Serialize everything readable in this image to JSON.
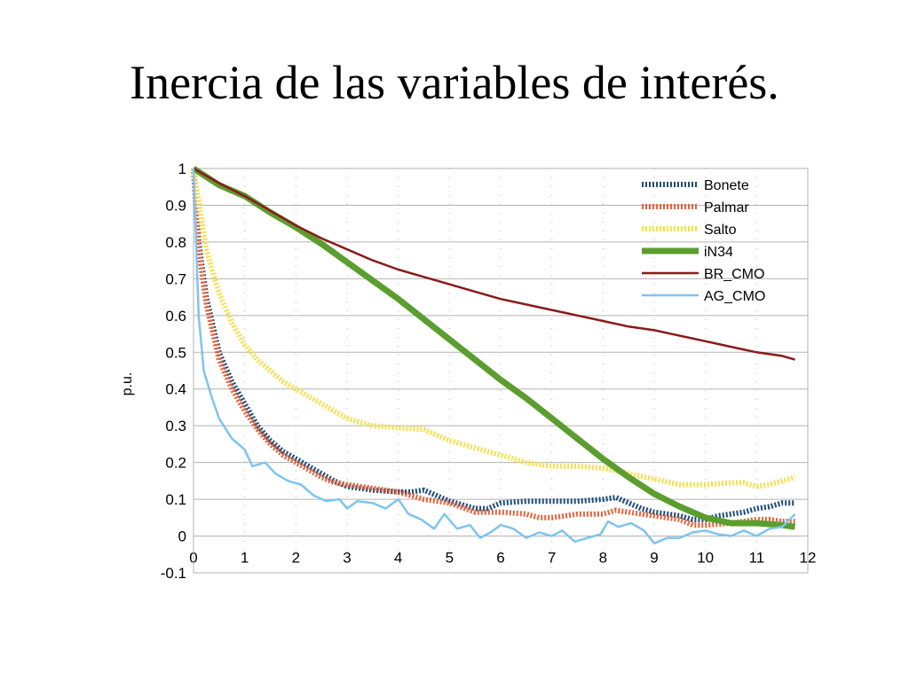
{
  "slide": {
    "title": "Inercia de las variables de interés."
  },
  "chart_data": {
    "type": "line",
    "title": "",
    "xlabel": "",
    "ylabel": "p.u.",
    "xlim": [
      0,
      12
    ],
    "ylim": [
      -0.1,
      1
    ],
    "xticks": [
      0,
      1,
      2,
      3,
      4,
      5,
      6,
      7,
      8,
      9,
      10,
      11,
      12
    ],
    "yticks": [
      -0.1,
      0,
      0.1,
      0.2,
      0.3,
      0.4,
      0.5,
      0.6,
      0.7,
      0.8,
      0.9,
      1
    ],
    "xtick_labels": [
      "0",
      "1",
      "2",
      "3",
      "4",
      "5",
      "6",
      "7",
      "8",
      "9",
      "10",
      "11",
      "12"
    ],
    "ytick_labels": [
      "-0.1",
      "0",
      "0.1",
      "0.2",
      "0.3",
      "0.4",
      "0.5",
      "0.6",
      "0.7",
      "0.8",
      "0.9",
      "1"
    ],
    "grid": "vertical dashed, horizontal solid",
    "legend_position": "top-right",
    "series": [
      {
        "name": "Bonete",
        "color": "#1f4e79",
        "style": "dotted-thick",
        "points": [
          [
            0,
            1
          ],
          [
            0.1,
            0.8
          ],
          [
            0.25,
            0.65
          ],
          [
            0.5,
            0.5
          ],
          [
            0.75,
            0.42
          ],
          [
            1,
            0.36
          ],
          [
            1.25,
            0.3
          ],
          [
            1.5,
            0.26
          ],
          [
            1.75,
            0.23
          ],
          [
            2,
            0.21
          ],
          [
            2.25,
            0.19
          ],
          [
            2.5,
            0.17
          ],
          [
            2.75,
            0.15
          ],
          [
            3,
            0.135
          ],
          [
            3.5,
            0.125
          ],
          [
            4,
            0.12
          ],
          [
            4.25,
            0.12
          ],
          [
            4.5,
            0.125
          ],
          [
            4.75,
            0.11
          ],
          [
            5,
            0.095
          ],
          [
            5.25,
            0.085
          ],
          [
            5.5,
            0.075
          ],
          [
            5.75,
            0.075
          ],
          [
            6,
            0.09
          ],
          [
            6.5,
            0.095
          ],
          [
            7,
            0.095
          ],
          [
            7.5,
            0.095
          ],
          [
            8,
            0.1
          ],
          [
            8.25,
            0.105
          ],
          [
            8.5,
            0.09
          ],
          [
            8.75,
            0.075
          ],
          [
            9,
            0.065
          ],
          [
            9.5,
            0.055
          ],
          [
            9.75,
            0.045
          ],
          [
            10,
            0.045
          ],
          [
            10.25,
            0.055
          ],
          [
            10.5,
            0.06
          ],
          [
            10.75,
            0.065
          ],
          [
            11,
            0.075
          ],
          [
            11.25,
            0.08
          ],
          [
            11.5,
            0.09
          ],
          [
            11.75,
            0.09
          ]
        ]
      },
      {
        "name": "Palmar",
        "color": "#e8623a",
        "style": "dotted-thick",
        "points": [
          [
            0,
            1
          ],
          [
            0.1,
            0.78
          ],
          [
            0.25,
            0.63
          ],
          [
            0.5,
            0.48
          ],
          [
            0.75,
            0.4
          ],
          [
            1,
            0.34
          ],
          [
            1.25,
            0.29
          ],
          [
            1.5,
            0.25
          ],
          [
            1.75,
            0.22
          ],
          [
            2,
            0.2
          ],
          [
            2.25,
            0.18
          ],
          [
            2.5,
            0.16
          ],
          [
            2.75,
            0.145
          ],
          [
            3,
            0.14
          ],
          [
            3.25,
            0.135
          ],
          [
            3.5,
            0.13
          ],
          [
            4,
            0.12
          ],
          [
            4.25,
            0.11
          ],
          [
            4.5,
            0.1
          ],
          [
            5,
            0.09
          ],
          [
            5.5,
            0.065
          ],
          [
            6,
            0.065
          ],
          [
            6.5,
            0.06
          ],
          [
            6.75,
            0.05
          ],
          [
            7,
            0.05
          ],
          [
            7.5,
            0.06
          ],
          [
            8,
            0.06
          ],
          [
            8.25,
            0.07
          ],
          [
            8.5,
            0.065
          ],
          [
            8.75,
            0.06
          ],
          [
            9,
            0.055
          ],
          [
            9.5,
            0.045
          ],
          [
            9.75,
            0.03
          ],
          [
            10,
            0.03
          ],
          [
            10.5,
            0.035
          ],
          [
            11,
            0.045
          ],
          [
            11.25,
            0.045
          ],
          [
            11.5,
            0.04
          ],
          [
            11.75,
            0.04
          ]
        ]
      },
      {
        "name": "Salto",
        "color": "#f5e04e",
        "style": "dotted-thick",
        "points": [
          [
            0,
            1
          ],
          [
            0.25,
            0.78
          ],
          [
            0.5,
            0.66
          ],
          [
            0.75,
            0.58
          ],
          [
            1,
            0.52
          ],
          [
            1.25,
            0.48
          ],
          [
            1.5,
            0.45
          ],
          [
            1.75,
            0.42
          ],
          [
            2,
            0.4
          ],
          [
            2.5,
            0.36
          ],
          [
            3,
            0.32
          ],
          [
            3.5,
            0.3
          ],
          [
            4,
            0.295
          ],
          [
            4.5,
            0.29
          ],
          [
            5,
            0.26
          ],
          [
            5.5,
            0.24
          ],
          [
            6,
            0.22
          ],
          [
            6.5,
            0.2
          ],
          [
            7,
            0.19
          ],
          [
            7.5,
            0.19
          ],
          [
            8,
            0.185
          ],
          [
            8.5,
            0.17
          ],
          [
            9,
            0.155
          ],
          [
            9.5,
            0.14
          ],
          [
            10,
            0.14
          ],
          [
            10.5,
            0.145
          ],
          [
            10.75,
            0.145
          ],
          [
            11,
            0.135
          ],
          [
            11.25,
            0.14
          ],
          [
            11.5,
            0.15
          ],
          [
            11.75,
            0.16
          ]
        ]
      },
      {
        "name": "iN34",
        "color": "#5b9e2f",
        "style": "solid-thick",
        "points": [
          [
            0,
            1
          ],
          [
            0.5,
            0.955
          ],
          [
            1,
            0.925
          ],
          [
            1.5,
            0.88
          ],
          [
            2,
            0.84
          ],
          [
            2.5,
            0.795
          ],
          [
            3,
            0.745
          ],
          [
            3.5,
            0.695
          ],
          [
            4,
            0.645
          ],
          [
            4.5,
            0.59
          ],
          [
            5,
            0.535
          ],
          [
            5.5,
            0.48
          ],
          [
            6,
            0.425
          ],
          [
            6.5,
            0.375
          ],
          [
            7,
            0.32
          ],
          [
            7.5,
            0.265
          ],
          [
            8,
            0.21
          ],
          [
            8.5,
            0.16
          ],
          [
            9,
            0.115
          ],
          [
            9.5,
            0.08
          ],
          [
            10,
            0.05
          ],
          [
            10.5,
            0.035
          ],
          [
            11,
            0.035
          ],
          [
            11.5,
            0.03
          ],
          [
            11.75,
            0.025
          ]
        ]
      },
      {
        "name": "BR_CMO",
        "color": "#8b1a1a",
        "style": "solid",
        "points": [
          [
            0,
            1
          ],
          [
            0.5,
            0.96
          ],
          [
            1,
            0.925
          ],
          [
            1.5,
            0.885
          ],
          [
            2,
            0.845
          ],
          [
            2.5,
            0.81
          ],
          [
            3,
            0.78
          ],
          [
            3.5,
            0.75
          ],
          [
            4,
            0.725
          ],
          [
            4.5,
            0.705
          ],
          [
            5,
            0.685
          ],
          [
            5.5,
            0.665
          ],
          [
            6,
            0.645
          ],
          [
            6.5,
            0.63
          ],
          [
            7,
            0.615
          ],
          [
            7.5,
            0.6
          ],
          [
            8,
            0.585
          ],
          [
            8.5,
            0.57
          ],
          [
            9,
            0.56
          ],
          [
            9.5,
            0.545
          ],
          [
            10,
            0.53
          ],
          [
            10.5,
            0.515
          ],
          [
            11,
            0.5
          ],
          [
            11.5,
            0.49
          ],
          [
            11.75,
            0.48
          ]
        ]
      },
      {
        "name": "AG_CMO",
        "color": "#7fc4f0",
        "style": "solid",
        "points": [
          [
            0,
            1
          ],
          [
            0.1,
            0.6
          ],
          [
            0.2,
            0.45
          ],
          [
            0.35,
            0.38
          ],
          [
            0.5,
            0.32
          ],
          [
            0.75,
            0.265
          ],
          [
            1,
            0.235
          ],
          [
            1.15,
            0.19
          ],
          [
            1.4,
            0.2
          ],
          [
            1.6,
            0.17
          ],
          [
            1.85,
            0.15
          ],
          [
            2.1,
            0.14
          ],
          [
            2.35,
            0.11
          ],
          [
            2.6,
            0.095
          ],
          [
            2.85,
            0.1
          ],
          [
            3,
            0.075
          ],
          [
            3.2,
            0.095
          ],
          [
            3.5,
            0.09
          ],
          [
            3.75,
            0.075
          ],
          [
            4,
            0.1
          ],
          [
            4.2,
            0.06
          ],
          [
            4.45,
            0.045
          ],
          [
            4.7,
            0.02
          ],
          [
            4.9,
            0.06
          ],
          [
            5.15,
            0.02
          ],
          [
            5.4,
            0.03
          ],
          [
            5.6,
            -0.005
          ],
          [
            5.8,
            0.01
          ],
          [
            6,
            0.03
          ],
          [
            6.25,
            0.02
          ],
          [
            6.5,
            -0.005
          ],
          [
            6.75,
            0.01
          ],
          [
            7,
            0
          ],
          [
            7.2,
            0.015
          ],
          [
            7.45,
            -0.015
          ],
          [
            7.7,
            -0.005
          ],
          [
            7.95,
            0.005
          ],
          [
            8.1,
            0.04
          ],
          [
            8.3,
            0.025
          ],
          [
            8.55,
            0.035
          ],
          [
            8.8,
            0.015
          ],
          [
            9,
            -0.02
          ],
          [
            9.25,
            -0.005
          ],
          [
            9.5,
            -0.005
          ],
          [
            9.75,
            0.01
          ],
          [
            10,
            0.015
          ],
          [
            10.25,
            0.005
          ],
          [
            10.5,
            0
          ],
          [
            10.75,
            0.015
          ],
          [
            11,
            0
          ],
          [
            11.25,
            0.02
          ],
          [
            11.5,
            0.025
          ],
          [
            11.75,
            0.06
          ]
        ]
      }
    ]
  }
}
